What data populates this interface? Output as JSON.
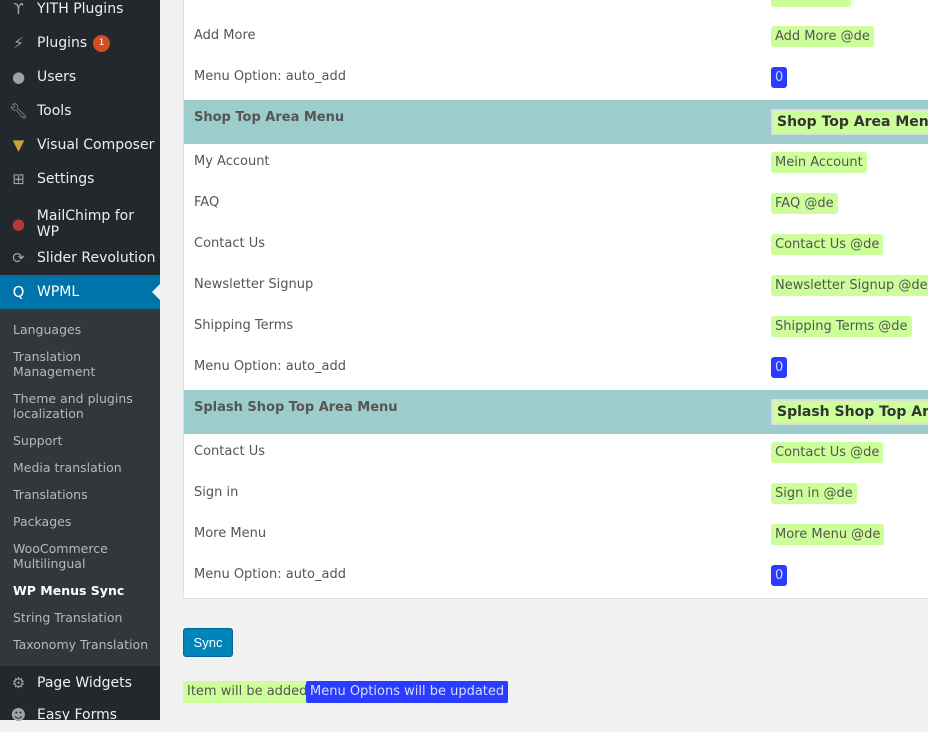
{
  "sidebar": {
    "menu": [
      {
        "label": "YITH Plugins",
        "icon": "yith-icon"
      },
      {
        "label": "Plugins",
        "icon": "plugin-icon",
        "badge": "1"
      },
      {
        "label": "Users",
        "icon": "users-icon"
      },
      {
        "label": "Tools",
        "icon": "wrench-icon"
      },
      {
        "label": "Visual Composer",
        "icon": "visual-composer-icon"
      },
      {
        "label": "Settings",
        "icon": "settings-icon"
      },
      {
        "label": "MailChimp for WP",
        "icon": "mailchimp-icon"
      },
      {
        "label": "Slider Revolution",
        "icon": "refresh-icon"
      },
      {
        "label": "WPML",
        "icon": "wpml-icon"
      }
    ],
    "submenu": [
      "Languages",
      "Translation Management",
      "Theme and plugins localization",
      "Support",
      "Media translation",
      "Translations",
      "Packages",
      "WooCommerce Multilingual",
      "WP Menus Sync",
      "String Translation",
      "Taxonomy Translation"
    ],
    "menu_bottom": [
      {
        "label": "Page Widgets",
        "icon": "gear-icon"
      },
      {
        "label": "Easy Forms",
        "icon": "easy-forms-icon"
      }
    ]
  },
  "table": {
    "rows": [
      {
        "type": "item",
        "label": "",
        "value": ""
      },
      {
        "type": "item",
        "label": "Add More",
        "value": "Add More @de"
      },
      {
        "type": "option",
        "label": "Menu Option: auto_add",
        "value": "0"
      },
      {
        "type": "header",
        "label": "Shop Top Area Menu",
        "value": "Shop Top Area Menu -"
      },
      {
        "type": "item",
        "label": "My Account",
        "value": "Mein Account"
      },
      {
        "type": "item",
        "label": "FAQ",
        "value": "FAQ @de"
      },
      {
        "type": "item",
        "label": "Contact Us",
        "value": "Contact Us @de"
      },
      {
        "type": "item",
        "label": "Newsletter Signup",
        "value": "Newsletter Signup @de"
      },
      {
        "type": "item",
        "label": "Shipping Terms",
        "value": "Shipping Terms @de"
      },
      {
        "type": "option",
        "label": "Menu Option: auto_add",
        "value": "0"
      },
      {
        "type": "header",
        "label": "Splash Shop Top Area Menu",
        "value": "Splash Shop Top Area"
      },
      {
        "type": "item",
        "label": "Contact Us",
        "value": "Contact Us @de"
      },
      {
        "type": "item",
        "label": "Sign in",
        "value": "Sign in @de"
      },
      {
        "type": "item",
        "label": "More Menu",
        "value": "More Menu @de"
      },
      {
        "type": "option",
        "label": "Menu Option: auto_add",
        "value": "0"
      }
    ]
  },
  "sync_label": "Sync",
  "legend": {
    "added": "Item will be added",
    "updated": "Menu Options will be updated"
  },
  "colors": {
    "added": "#ccff99",
    "updated": "#2a3cff",
    "header": "#9ccccc",
    "active": "#0073aa"
  }
}
